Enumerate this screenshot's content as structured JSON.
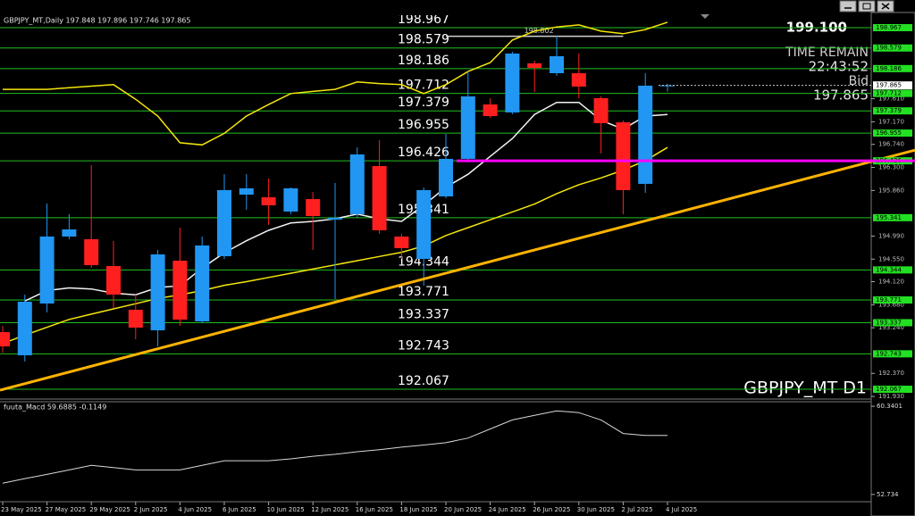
{
  "chart_data": {
    "type": "candlestick",
    "title": "GBPJPY_MT,Daily 197.848 197.896 197.746 197.865",
    "categories": [
      "23 May 2025",
      null,
      "27 May 2025",
      null,
      "29 May 2025",
      null,
      "2 Jun 2025",
      null,
      "4 Jun 2025",
      null,
      "6 Jun 2025",
      null,
      "10 Jun 2025",
      null,
      "12 Jun 2025",
      null,
      "16 Jun 2025",
      null,
      "18 Jun 2025",
      null,
      "20 Jun 2025",
      null,
      "24 Jun 2025",
      null,
      "26 Jun 2025",
      null,
      "30 Jun 2025",
      null,
      "2 Jul 2025",
      null,
      "4 Jul 2025"
    ],
    "open": [
      193.158,
      192.715,
      193.703,
      194.981,
      194.93,
      194.418,
      193.584,
      193.192,
      194.521,
      193.362,
      194.606,
      195.781,
      195.73,
      195.458,
      195.696,
      195.304,
      195.407,
      196.326,
      194.981,
      194.555,
      195.747,
      196.463,
      197.502,
      197.349,
      198.286,
      198.098,
      198.098,
      197.621,
      197.161,
      195.986,
      197.848
    ],
    "high": [
      193.277,
      193.873,
      195.611,
      195.407,
      196.343,
      194.895,
      193.873,
      194.725,
      195.151,
      194.981,
      196.173,
      196.173,
      196.088,
      195.918,
      195.832,
      196.003,
      196.684,
      196.82,
      195.032,
      195.918,
      196.94,
      198.132,
      197.621,
      198.507,
      198.337,
      198.814,
      198.473,
      197.655,
      197.195,
      198.098,
      197.896
    ],
    "low": [
      192.766,
      192.596,
      193.533,
      194.93,
      194.384,
      193.618,
      193.022,
      192.885,
      193.277,
      193.328,
      194.555,
      195.492,
      195.202,
      195.407,
      194.725,
      193.788,
      195.338,
      195.032,
      194.555,
      194.044,
      195.713,
      196.395,
      197.246,
      197.315,
      197.74,
      198.047,
      197.621,
      196.565,
      195.407,
      195.815,
      197.746
    ],
    "close": [
      192.885,
      193.737,
      194.981,
      195.117,
      194.435,
      193.873,
      193.243,
      194.64,
      193.396,
      194.81,
      195.867,
      195.901,
      195.577,
      195.901,
      195.372,
      195.338,
      196.548,
      195.1,
      194.759,
      195.867,
      196.463,
      197.655,
      197.28,
      198.473,
      198.2,
      198.422,
      197.843,
      197.144,
      195.867,
      197.86,
      197.865
    ],
    "up_color": "#2196f3",
    "down_color": "#ff1f1f",
    "ylim": [
      191.88,
      199.205
    ],
    "yticks": [
      {
        "value": 197.61,
        "label": "197.610"
      },
      {
        "value": 197.17,
        "label": "197.170"
      },
      {
        "value": 196.74,
        "label": "196.740"
      },
      {
        "value": 196.3,
        "label": "196.300"
      },
      {
        "value": 195.86,
        "label": "195.860"
      },
      {
        "value": 194.99,
        "label": "194.990"
      },
      {
        "value": 194.55,
        "label": "194.550"
      },
      {
        "value": 194.12,
        "label": "194.120"
      },
      {
        "value": 193.68,
        "label": "193.680"
      },
      {
        "value": 193.24,
        "label": "193.240"
      },
      {
        "value": 192.37,
        "label": "192.370"
      },
      {
        "value": 191.93,
        "label": "191.930"
      }
    ],
    "levels": [
      198.967,
      198.579,
      198.186,
      197.712,
      197.379,
      196.955,
      196.426,
      195.341,
      194.344,
      193.771,
      193.337,
      192.743,
      192.067
    ],
    "level_color": "#1fbf1f",
    "highlight_line": {
      "value": 196.426,
      "color": "#ff00ff"
    },
    "marker_line": {
      "value": 198.802,
      "color": "#d0d0d0"
    },
    "current_price": 197.865,
    "trendline": {
      "start": 192.05,
      "end": 196.63,
      "color": "#ffb300"
    },
    "overlays": [
      {
        "color": "#f2f2f2",
        "values": [
          null,
          193.75,
          193.95,
          194.0,
          193.98,
          193.9,
          193.87,
          194.01,
          194.04,
          194.38,
          194.67,
          194.9,
          195.1,
          195.24,
          195.27,
          195.32,
          195.41,
          195.32,
          195.27,
          195.58,
          195.92,
          196.17,
          196.51,
          196.85,
          197.31,
          197.54,
          197.54,
          197.2,
          197.03,
          197.28,
          197.31
        ]
      },
      {
        "color": "#f5e60a",
        "values": [
          197.79,
          197.79,
          197.79,
          197.82,
          197.85,
          197.88,
          197.6,
          197.28,
          196.77,
          196.73,
          196.95,
          197.28,
          197.5,
          197.71,
          197.75,
          197.79,
          197.93,
          197.9,
          197.88,
          197.71,
          197.88,
          198.13,
          198.3,
          198.73,
          198.9,
          198.98,
          199.02,
          198.9,
          198.85,
          198.93,
          199.07
        ]
      },
      {
        "color": "#f5e60a",
        "values": [
          192.94,
          193.1,
          193.25,
          193.4,
          193.5,
          193.6,
          193.7,
          193.8,
          193.87,
          193.95,
          194.05,
          194.12,
          194.2,
          194.28,
          194.36,
          194.44,
          194.52,
          194.6,
          194.68,
          194.8,
          195.0,
          195.15,
          195.3,
          195.45,
          195.6,
          195.8,
          195.97,
          196.1,
          196.25,
          196.43,
          196.68
        ]
      }
    ],
    "info": {
      "top": "199.100",
      "time_remain_label": "TIME REMAIN",
      "time": "22:43:52",
      "bid_label": "Bid",
      "bid": 197.865
    },
    "symbol_label": "GBPJPY_MT D1",
    "indicator": {
      "title": "fuuta_Macd 59.6885 -0.1149",
      "ylim": [
        52.107,
        60.732
      ],
      "yticks": [
        60.3401,
        52.734
      ],
      "color": "#d8d8d8",
      "values": [
        53.7,
        54.1,
        54.46,
        54.85,
        55.24,
        55.05,
        54.85,
        54.85,
        54.85,
        55.24,
        55.64,
        55.64,
        55.64,
        55.8,
        56.03,
        56.2,
        56.42,
        56.6,
        56.81,
        57.0,
        57.2,
        57.6,
        58.38,
        59.16,
        59.56,
        59.95,
        59.79,
        59.16,
        57.99,
        57.83,
        57.83
      ]
    }
  }
}
